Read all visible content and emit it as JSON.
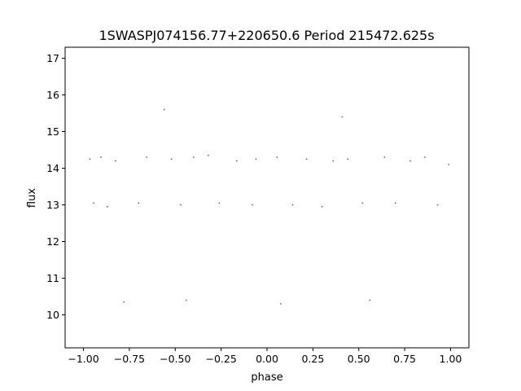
{
  "chart_data": {
    "type": "scatter",
    "title": "1SWASPJ074156.77+220650.6 Period 215472.625s",
    "xlabel": "phase",
    "ylabel": "flux",
    "xlim": [
      -1.1,
      1.1
    ],
    "ylim": [
      9.1,
      17.3
    ],
    "x_ticks": [
      -1.0,
      -0.75,
      -0.5,
      -0.25,
      0.0,
      0.25,
      0.5,
      0.75,
      1.0
    ],
    "x_tick_labels": [
      "−1.00",
      "−0.75",
      "−0.50",
      "−0.25",
      "0.00",
      "0.25",
      "0.50",
      "0.75",
      "1.00"
    ],
    "y_ticks": [
      10,
      11,
      12,
      13,
      14,
      15,
      16,
      17
    ],
    "y_tick_labels": [
      "10",
      "11",
      "12",
      "13",
      "14",
      "15",
      "16",
      "17"
    ],
    "grid": false,
    "marker_color": "#1f77b4",
    "point_size": "tiny",
    "series": [
      {
        "points": [
          [
            -0.965,
            14.25
          ],
          [
            -0.945,
            13.05
          ],
          [
            -0.905,
            14.3
          ],
          [
            -0.87,
            12.95
          ],
          [
            -0.825,
            14.2
          ],
          [
            -0.78,
            10.35
          ],
          [
            -0.7,
            13.05
          ],
          [
            -0.655,
            14.3
          ],
          [
            -0.56,
            15.6
          ],
          [
            -0.52,
            14.25
          ],
          [
            -0.47,
            13.0
          ],
          [
            -0.44,
            10.4
          ],
          [
            -0.4,
            14.3
          ],
          [
            -0.32,
            14.35
          ],
          [
            -0.26,
            13.05
          ],
          [
            -0.165,
            14.2
          ],
          [
            -0.08,
            13.0
          ],
          [
            -0.06,
            14.25
          ],
          [
            0.055,
            14.3
          ],
          [
            0.075,
            10.3
          ],
          [
            0.14,
            13.0
          ],
          [
            0.215,
            14.25
          ],
          [
            0.3,
            12.95
          ],
          [
            0.36,
            14.2
          ],
          [
            0.41,
            15.4
          ],
          [
            0.44,
            14.25
          ],
          [
            0.52,
            13.05
          ],
          [
            0.56,
            10.4
          ],
          [
            0.64,
            14.3
          ],
          [
            0.7,
            13.05
          ],
          [
            0.78,
            14.2
          ],
          [
            0.86,
            14.3
          ],
          [
            0.93,
            13.0
          ],
          [
            0.99,
            14.1
          ]
        ]
      }
    ]
  }
}
